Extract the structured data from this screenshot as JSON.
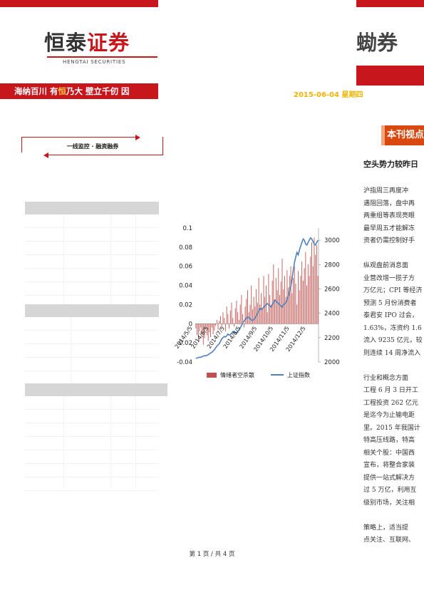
{
  "header": {
    "logo_cn_left": "恒泰",
    "logo_cn_right": "证券",
    "logo_en": "HENGTAI SECURITIES",
    "logo_right_fragment": "蜐券",
    "slogan_part1": "海纳百川  有",
    "slogan_highlight": "恒",
    "slogan_part2": "乃大   壁立千仞  因",
    "date": "2015-06-04  星期四"
  },
  "section": {
    "label": "一线监控 · 融资融券"
  },
  "right_panel": {
    "tab_label": "本刊视点",
    "article_title": "空头势力较昨日",
    "paragraphs": [
      [
        "    沪指周三再度冲",
        "遇阻回落，盘中再",
        "两重组等表现亮眼",
        "最早周五才能解冻",
        "资者仍需控制好手"
      ],
      [
        "    纵观盘前消息面",
        "业营改增一揽子方",
        "万亿元；CPI 等经济",
        "预测 5 月份消费者",
        "泰君安 IPO 过会，",
        "1.63%，冻资约 1.6",
        "流入 9235 亿元，较",
        "则连续 14 周净流入"
      ],
      [
        "    行业和概念方面",
        "工程 6 月 3 日开工",
        "工程投资 262 亿元",
        "是迄今为止输电距",
        "里。2015 年我国计",
        "特高压线路，特高",
        "相关个股：中国西",
        "宣布，将整合家装",
        "提供一站式解决方",
        "过 5 万亿，利用互",
        "级别市场，关注相"
      ],
      [
        "    策略上，适当提",
        "点关注、互联网、"
      ]
    ]
  },
  "chart_data": {
    "type": "bar+line",
    "series": [
      {
        "name": "情绪者空杀散",
        "axis": "left",
        "kind": "bar",
        "color": "#c0504d",
        "values": [
          -0.005,
          -0.012,
          -0.018,
          -0.008,
          -0.004,
          -0.01,
          -0.022,
          -0.015,
          -0.006,
          -0.012,
          -0.018,
          -0.009,
          -0.014,
          -0.004,
          -0.011,
          -0.007,
          -0.002,
          0.004,
          -0.006,
          0.003,
          0.008,
          -0.004,
          0.012,
          0.006,
          -0.008,
          0.018,
          0.01,
          -0.005,
          0.014,
          0.022,
          0.006,
          -0.003,
          0.016,
          0.024,
          0.012,
          0.004,
          0.02,
          0.03,
          0.01,
          -0.004,
          0.018,
          0.026,
          0.035,
          0.012,
          0.02,
          0.04,
          0.015,
          0.028,
          0.018,
          0.036,
          0.022,
          0.048,
          0.02,
          0.032,
          0.016,
          0.05,
          0.028,
          0.04,
          0.012,
          0.052,
          0.03,
          0.02,
          0.045,
          0.062,
          0.025,
          0.048,
          0.035,
          0.058,
          0.03,
          0.044,
          0.068,
          0.036,
          0.05,
          0.028,
          0.056,
          0.038,
          0.05,
          0.06,
          0.032,
          0.048,
          0.06,
          0.042,
          0.02,
          0.055,
          0.035,
          0.05,
          0.065,
          0.045,
          0.058,
          0.075,
          0.04,
          0.062,
          0.05,
          0.07,
          0.085,
          0.06,
          0.09,
          0.072,
          0.082,
          0.05
        ]
      },
      {
        "name": "上证指数",
        "axis": "right",
        "kind": "line",
        "color": "#4f81bd",
        "values": [
          2030,
          2032,
          2036,
          2040,
          2038,
          2045,
          2048,
          2052,
          2050,
          2055,
          2060,
          2066,
          2075,
          2080,
          2090,
          2100,
          2115,
          2130,
          2140,
          2150,
          2170,
          2190,
          2200,
          2210,
          2205,
          2215,
          2230,
          2220,
          2225,
          2235,
          2250,
          2245,
          2240,
          2235,
          2250,
          2265,
          2280,
          2300,
          2320,
          2335,
          2350,
          2360,
          2370,
          2365,
          2355,
          2345,
          2340,
          2350,
          2360,
          2380,
          2400,
          2420,
          2440,
          2430,
          2440,
          2450,
          2460,
          2470,
          2480,
          2470,
          2460,
          2450,
          2470,
          2490,
          2510,
          2500,
          2490,
          2480,
          2470,
          2460,
          2450,
          2470,
          2480,
          2490,
          2510,
          2540,
          2580,
          2620,
          2680,
          2750,
          2820,
          2860,
          2900,
          2880,
          2920,
          2950,
          2980,
          3010,
          3000,
          2970,
          2960,
          2980,
          3000,
          3020,
          3010,
          2990,
          2970,
          2960,
          2980,
          3000
        ]
      }
    ],
    "x_tick_labels": [
      "2014/5/5",
      "2014/6/5",
      "2014/7/5",
      "2014/8/5",
      "2014/9/5",
      "2014/10/5",
      "2014/11/5",
      "2014/12/5"
    ],
    "y_left_ticks": [
      "0.1",
      "0.08",
      "0.06",
      "0.04",
      "0.02",
      "0",
      "-0.02",
      "-0.04"
    ],
    "y_right_ticks": [
      "3000",
      "2800",
      "2600",
      "2400",
      "2200",
      "2000"
    ],
    "y_left_range": [
      -0.04,
      0.1
    ],
    "y_right_range": [
      2000,
      3100
    ],
    "legend_position": "bottom"
  },
  "footer": {
    "page_text": "第 1 页 / 共 4 页"
  }
}
